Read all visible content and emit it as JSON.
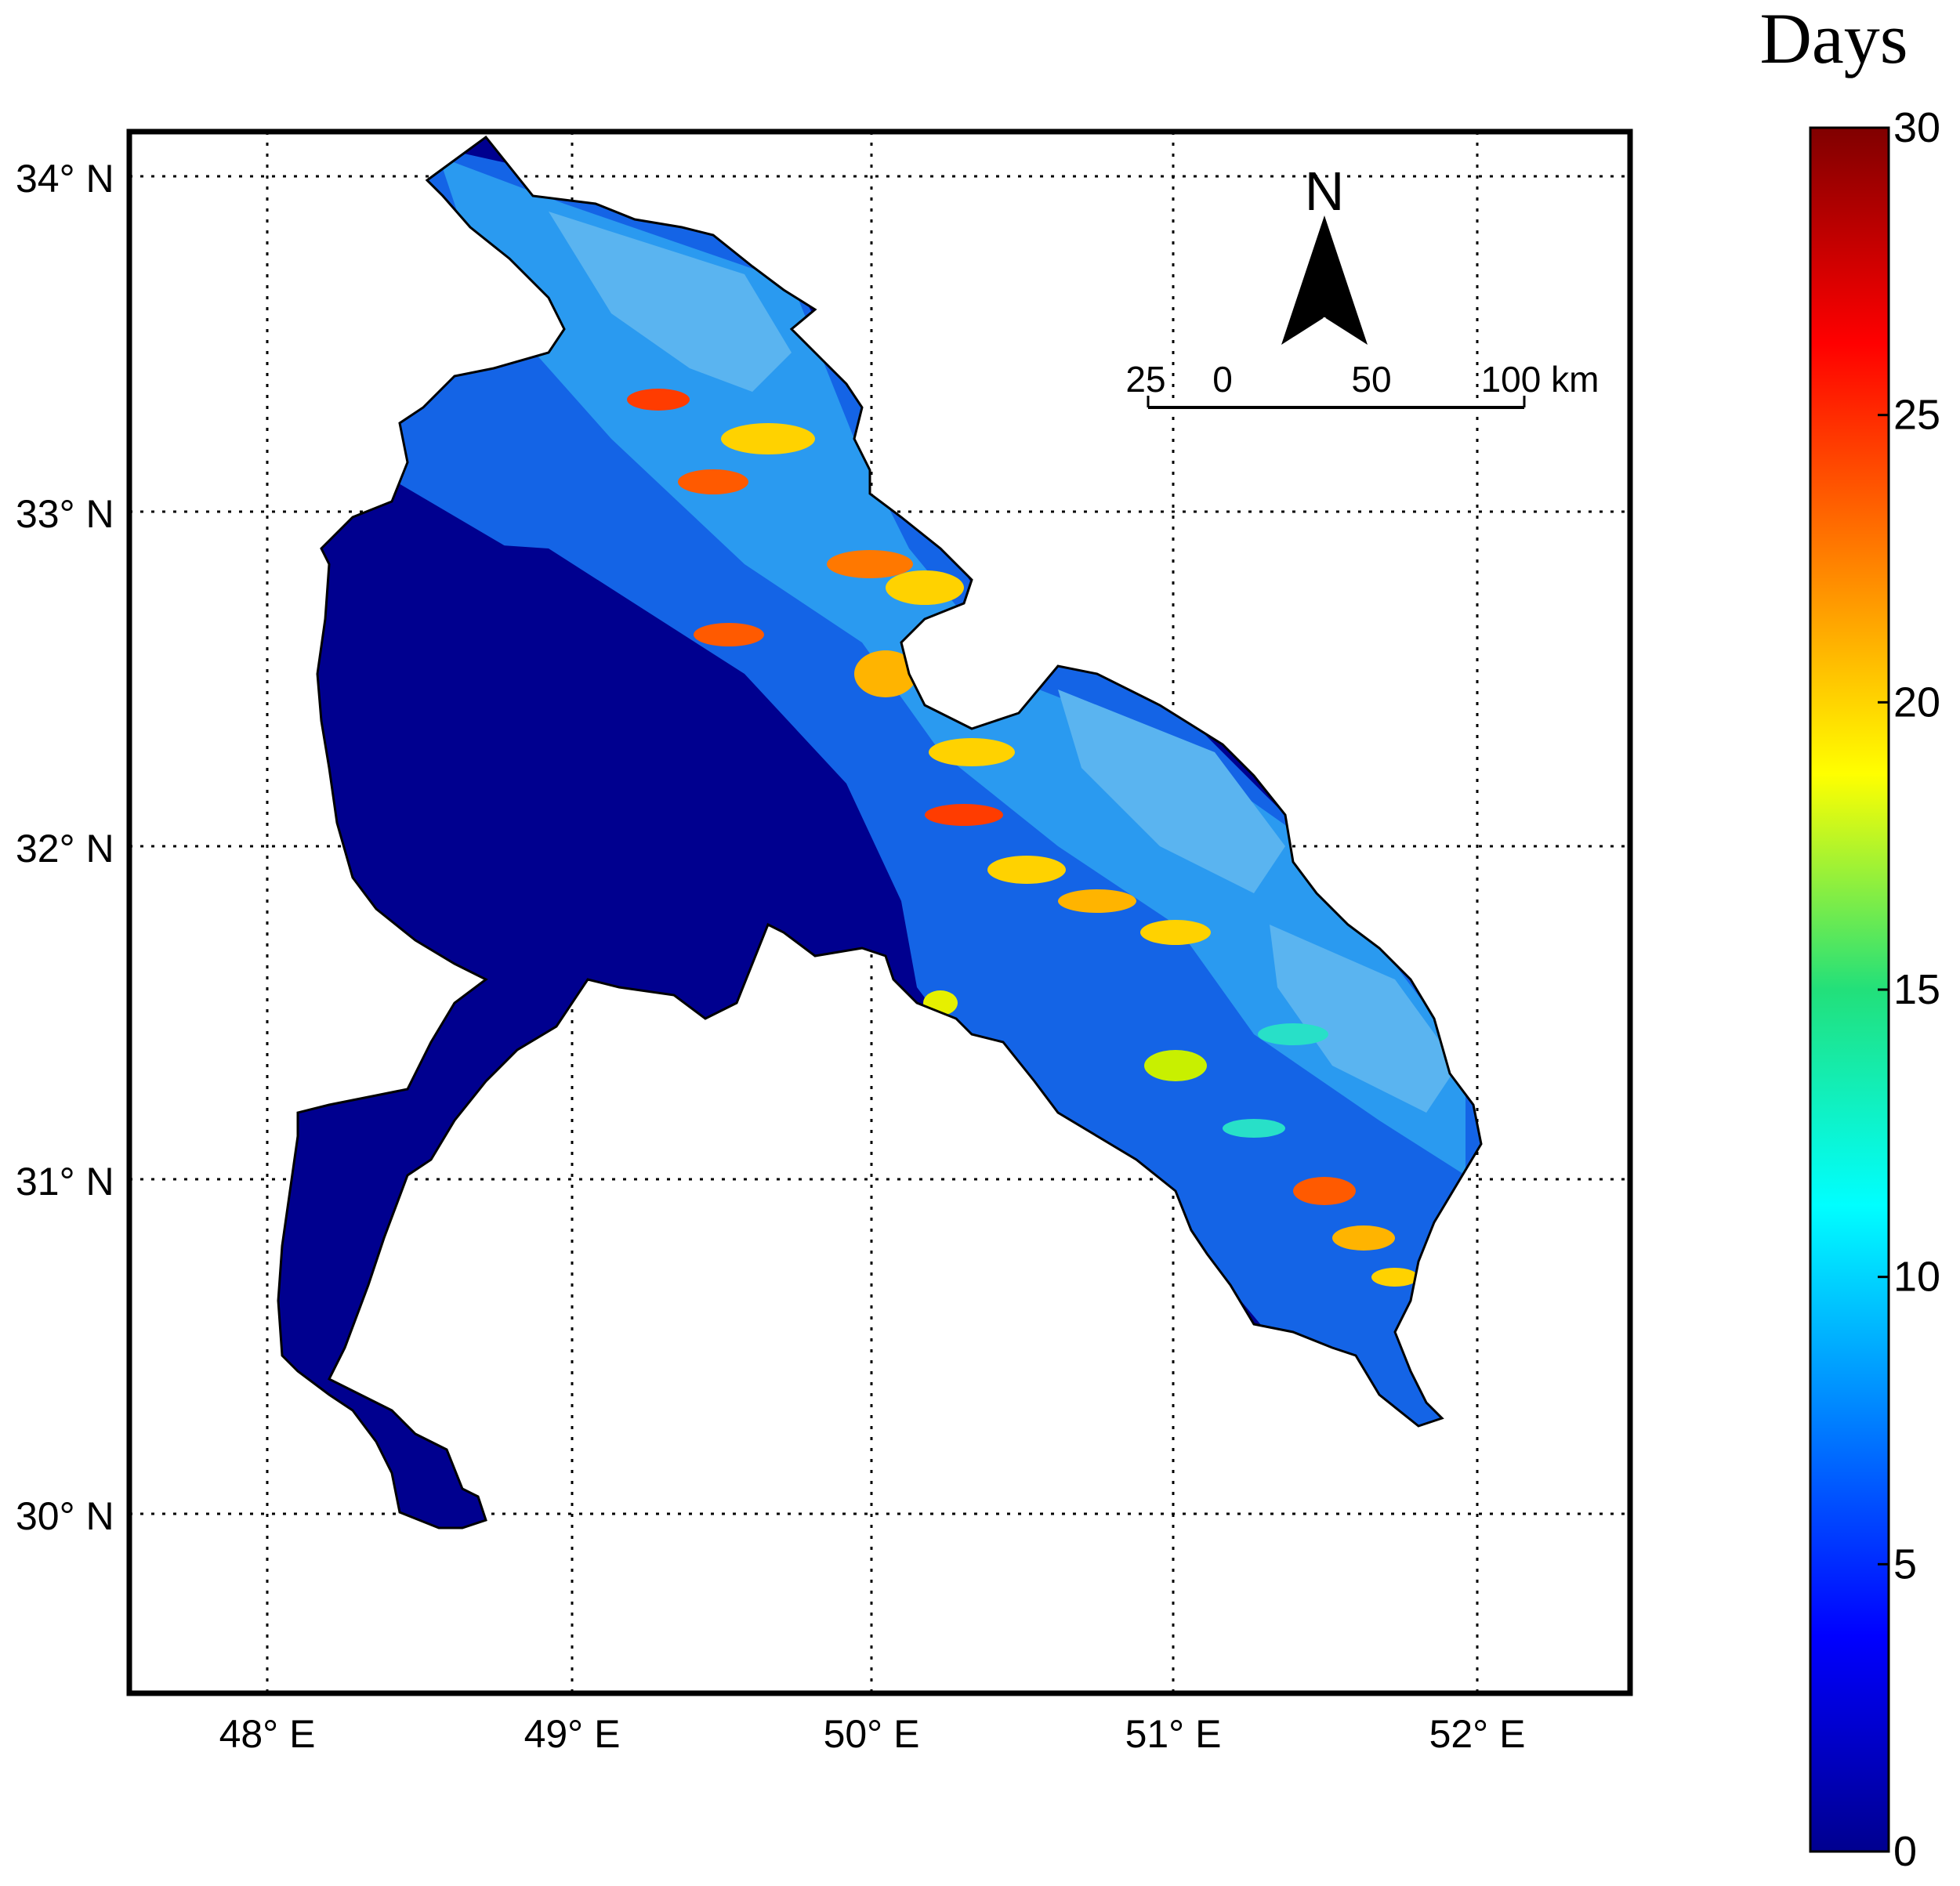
{
  "colorbar": {
    "title": "Days",
    "min": 0,
    "max": 30,
    "ticks": [
      {
        "value": 0,
        "label": "0"
      },
      {
        "value": 5,
        "label": "5"
      },
      {
        "value": 10,
        "label": "10"
      },
      {
        "value": 15,
        "label": "15"
      },
      {
        "value": 20,
        "label": "20"
      },
      {
        "value": 25,
        "label": "25"
      },
      {
        "value": 30,
        "label": "30"
      }
    ],
    "colormap": "jet"
  },
  "axes": {
    "lon_labels": [
      "48° E",
      "49° E",
      "50° E",
      "51° E",
      "52° E"
    ],
    "lat_labels": [
      "34° N",
      "33° N",
      "32° N",
      "31° N",
      "30° N"
    ],
    "grid": "dotted"
  },
  "north_arrow": {
    "label": "N"
  },
  "scale_bar": {
    "labels": [
      "25",
      "0",
      "50",
      "100 km"
    ]
  },
  "colors": {
    "low": "#00008f",
    "mid_low": "#1464e6",
    "mid": "#28c8f0",
    "high": "#ffd200",
    "very_high": "#e63c00"
  }
}
